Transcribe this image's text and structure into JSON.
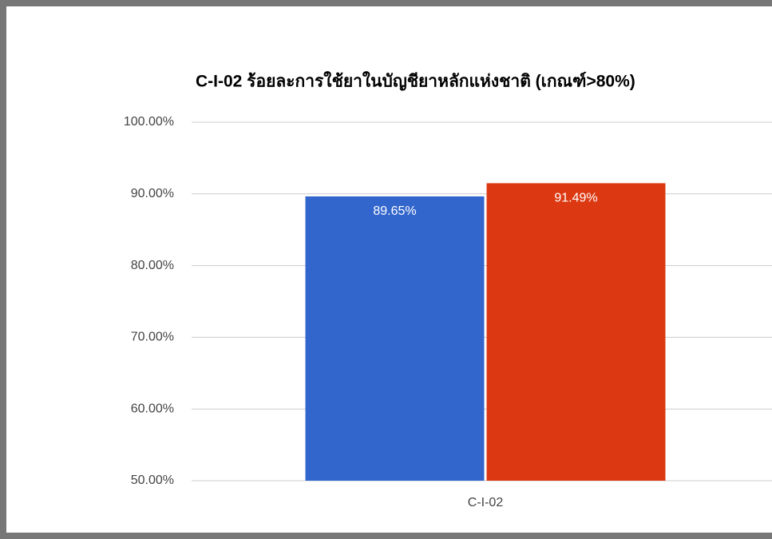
{
  "chart_data": {
    "type": "bar",
    "title": "C-I-02 ร้อยละการใช้ยาในบัญชียาหลักแห่งชาติ (เกณฑ์>80%)",
    "categories": [
      "C-I-02"
    ],
    "series": [
      {
        "color": "#3366cc",
        "values": [
          89.65
        ],
        "value_labels": [
          "89.65%"
        ]
      },
      {
        "color": "#dc3912",
        "values": [
          91.49
        ],
        "value_labels": [
          "91.49%"
        ]
      }
    ],
    "ylim": [
      50,
      100
    ],
    "yticks": [
      {
        "value": 50,
        "label": "50.00%"
      },
      {
        "value": 60,
        "label": "60.00%"
      },
      {
        "value": 70,
        "label": "70.00%"
      },
      {
        "value": 80,
        "label": "80.00%"
      },
      {
        "value": 90,
        "label": "90.00%"
      },
      {
        "value": 100,
        "label": "100.00%"
      }
    ],
    "grid": true
  }
}
